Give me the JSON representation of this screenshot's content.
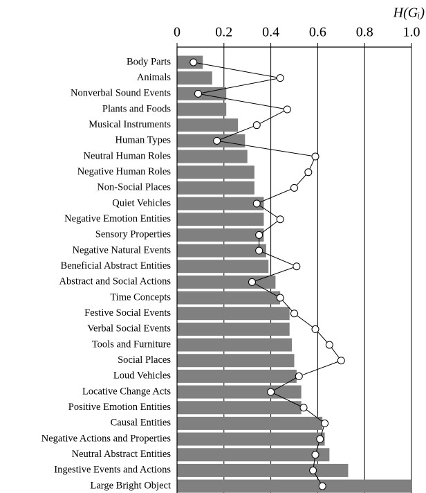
{
  "chart_data": {
    "type": "bar",
    "orientation": "horizontal",
    "title": "H(Gᵢ)",
    "categories": [
      "Body Parts",
      "Animals",
      "Nonverbal Sound Events",
      "Plants and Foods",
      "Musical Instruments",
      "Human Types",
      "Neutral Human Roles",
      "Negative Human Roles",
      "Non-Social Places",
      "Quiet Vehicles",
      "Negative Emotion Entities",
      "Sensory Properties",
      "Negative Natural Events",
      "Beneficial Abstract Entities",
      "Abstract and Social Actions",
      "Time Concepts",
      "Festive Social Events",
      "Verbal Social Events",
      "Tools and Furniture",
      "Social Places",
      "Loud Vehicles",
      "Locative Change Acts",
      "Positive Emotion Entities",
      "Causal Entities",
      "Negative Actions and Properties",
      "Neutral Abstract Entities",
      "Ingestive Events and Actions",
      "Large Bright Object"
    ],
    "series": [
      {
        "type": "bar",
        "color": "#808080",
        "values": [
          0.11,
          0.15,
          0.21,
          0.21,
          0.26,
          0.29,
          0.3,
          0.33,
          0.33,
          0.37,
          0.37,
          0.37,
          0.38,
          0.39,
          0.42,
          0.44,
          0.48,
          0.48,
          0.49,
          0.5,
          0.51,
          0.53,
          0.53,
          0.62,
          0.63,
          0.65,
          0.73,
          1.0
        ]
      },
      {
        "type": "line",
        "color": "#000000",
        "values": [
          0.07,
          0.44,
          0.09,
          0.47,
          0.34,
          0.17,
          0.59,
          0.56,
          0.5,
          0.34,
          0.44,
          0.35,
          0.35,
          0.51,
          0.32,
          0.44,
          0.5,
          0.59,
          0.65,
          0.7,
          0.52,
          0.4,
          0.54,
          0.63,
          0.61,
          0.59,
          0.58,
          0.62
        ]
      }
    ],
    "xlim": [
      0,
      1
    ],
    "xticks": [
      0,
      0.2,
      0.4,
      0.6,
      0.8,
      {
        "value": 1,
        "label": "1.0"
      }
    ],
    "grid": true
  }
}
